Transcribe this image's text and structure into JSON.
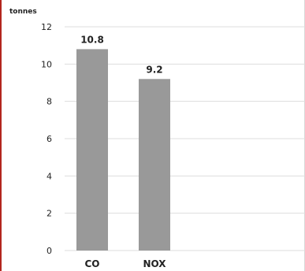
{
  "chart_data": {
    "type": "bar",
    "unit_label": "tonnes",
    "categories": [
      "CO",
      "NOX"
    ],
    "values": [
      10.8,
      9.2
    ],
    "data_labels": [
      "10.8",
      "9.2"
    ],
    "yticks": [
      "0",
      "2",
      "4",
      "6",
      "8",
      "10",
      "12"
    ],
    "ylim": [
      0,
      12
    ],
    "grid": true,
    "colors": {
      "bar": "#999999",
      "grid": "#dddddd",
      "text": "#222222",
      "left_rule": "#b3261e"
    }
  }
}
